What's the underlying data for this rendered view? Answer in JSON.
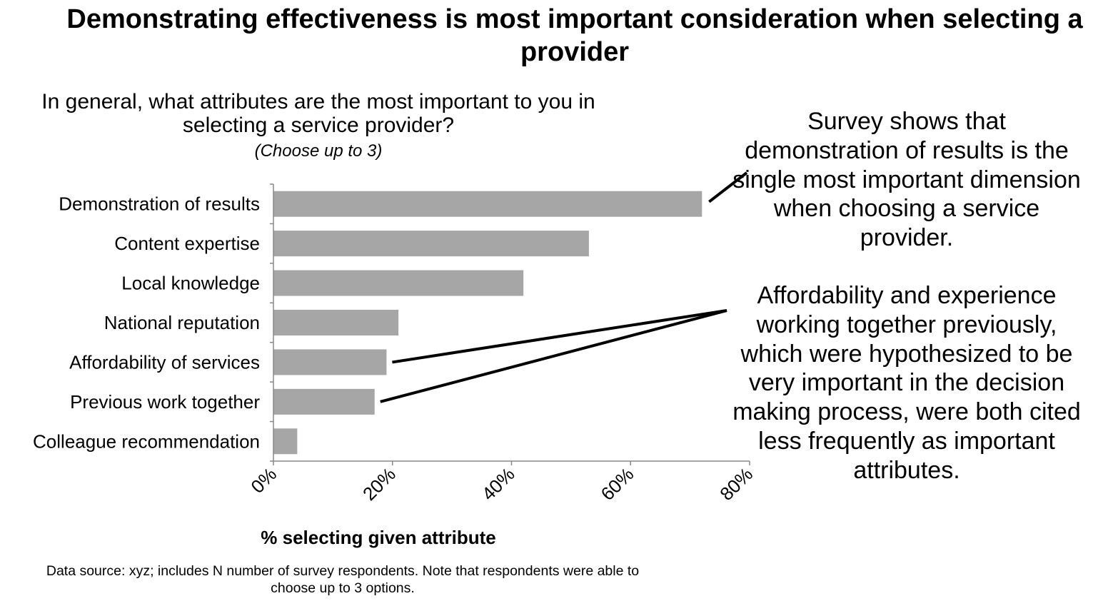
{
  "headline": "Demonstrating effectiveness is most important consideration when selecting a provider",
  "chart_data": {
    "type": "bar",
    "orientation": "horizontal",
    "title": "In general, what attributes are the most important to you in selecting a service provider?",
    "subtitle": "(Choose up to 3)",
    "categories": [
      "Demonstration of results",
      "Content expertise",
      "Local knowledge",
      "National reputation",
      "Affordability of services",
      "Previous work together",
      "Colleague recommendation"
    ],
    "values": [
      72,
      53,
      42,
      21,
      19,
      17,
      4
    ],
    "xlim": [
      0,
      80
    ],
    "xticks": [
      "0%",
      "20%",
      "40%",
      "60%",
      "80%"
    ],
    "xlabel": "% selecting given attribute",
    "ylabel": "",
    "bar_color": "#a6a6a6",
    "grid": false,
    "legend": "none"
  },
  "callouts": {
    "results_note": "Survey shows that demonstration of results is the single most important dimension when choosing a service provider.",
    "affordability_note": "Affordability and experience working together previously, which were hypothesized to be very important in the decision making process, were both cited less frequently as important attributes."
  },
  "footnote": "Data source: xyz; includes N number of survey respondents. Note that respondents were able to choose up to 3 options."
}
